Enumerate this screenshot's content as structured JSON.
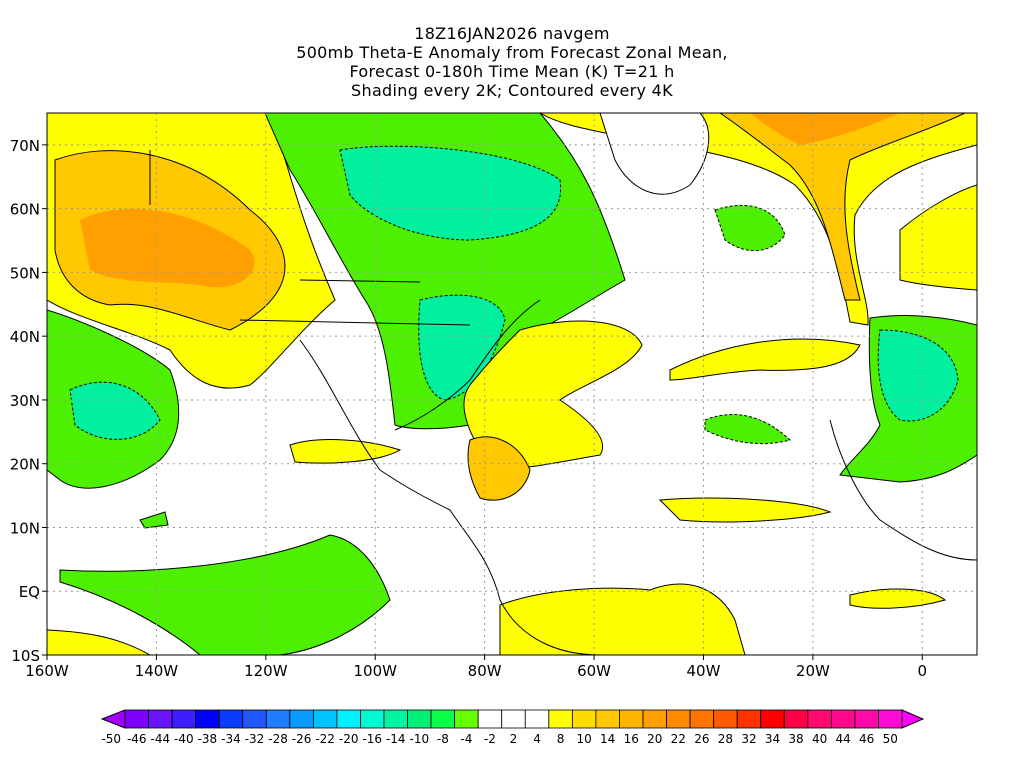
{
  "title": {
    "line1": "18Z16JAN2026 navgem",
    "line2": "500mb Theta-E Anomaly from Forecast Zonal Mean,",
    "line3": "Forecast 0-180h Time Mean (K) T=21 h",
    "line4": "Shading every 2K; Contoured every 4K"
  },
  "map": {
    "lon_range": [
      -160,
      10
    ],
    "lat_range": [
      -10,
      75
    ],
    "x_ticks": [
      {
        "value": -160,
        "label": "160W"
      },
      {
        "value": -140,
        "label": "140W"
      },
      {
        "value": -120,
        "label": "120W"
      },
      {
        "value": -100,
        "label": "100W"
      },
      {
        "value": -80,
        "label": "80W"
      },
      {
        "value": -60,
        "label": "60W"
      },
      {
        "value": -40,
        "label": "40W"
      },
      {
        "value": -20,
        "label": "20W"
      },
      {
        "value": 0,
        "label": "0"
      }
    ],
    "y_ticks": [
      {
        "value": -10,
        "label": "10S"
      },
      {
        "value": 0,
        "label": "EQ"
      },
      {
        "value": 10,
        "label": "10N"
      },
      {
        "value": 20,
        "label": "20N"
      },
      {
        "value": 30,
        "label": "30N"
      },
      {
        "value": 40,
        "label": "40N"
      },
      {
        "value": 50,
        "label": "50N"
      },
      {
        "value": 60,
        "label": "60N"
      },
      {
        "value": 70,
        "label": "70N"
      }
    ]
  },
  "colorbar": {
    "labels": [
      "-50",
      "-46",
      "-44",
      "-40",
      "-38",
      "-34",
      "-32",
      "-28",
      "-26",
      "-22",
      "-20",
      "-16",
      "-14",
      "-10",
      "-8",
      "-4",
      "-2",
      "2",
      "4",
      "8",
      "10",
      "14",
      "16",
      "20",
      "22",
      "26",
      "28",
      "32",
      "34",
      "38",
      "40",
      "44",
      "46",
      "50"
    ],
    "colors": [
      "#8000ff",
      "#6a14ff",
      "#3c1eff",
      "#0000ff",
      "#0a3cff",
      "#1e5aff",
      "#1e7dff",
      "#0a9bff",
      "#00c3ff",
      "#00f0ff",
      "#00fad2",
      "#00f5a0",
      "#00f078",
      "#0aff46",
      "#64ff00",
      "#ffffff",
      "#ffffff",
      "#ffffff",
      "#ffff00",
      "#ffdc00",
      "#ffc800",
      "#ffb400",
      "#ffa000",
      "#ff8c00",
      "#ff7300",
      "#ff5a00",
      "#ff3200",
      "#ff0000",
      "#ff0046",
      "#ff0a6e",
      "#ff0a8c",
      "#ff0aaa",
      "#ff0ad2"
    ],
    "left_arrow_color": "#a000ff",
    "right_arrow_color": "#ff00ff"
  }
}
